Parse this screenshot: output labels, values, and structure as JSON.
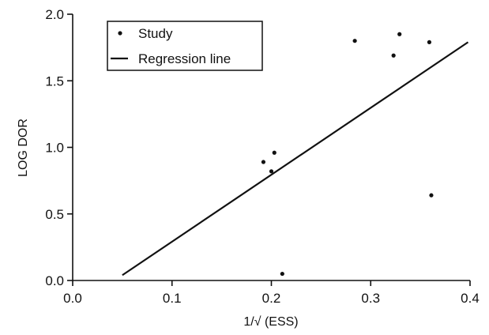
{
  "chart_data": {
    "type": "scatter",
    "title": "",
    "xlabel": "1/√ (ESS)",
    "ylabel": "LOG DOR",
    "xlim": [
      0.0,
      0.4
    ],
    "ylim": [
      0.0,
      2.0
    ],
    "x_ticks": [
      0.0,
      0.1,
      0.2,
      0.3,
      0.4
    ],
    "x_tick_labels": [
      "0.0",
      "0.1",
      "0.2",
      "0.3",
      "0.4"
    ],
    "y_ticks": [
      0.0,
      0.5,
      1.0,
      1.5,
      2.0
    ],
    "y_tick_labels": [
      "0.0",
      "0.5",
      "1.0",
      "1.5",
      "2.0"
    ],
    "grid": false,
    "legend_position": "top-left",
    "series": [
      {
        "name": "Study",
        "marker": "dot",
        "points": [
          {
            "x": 0.192,
            "y": 0.89
          },
          {
            "x": 0.2,
            "y": 0.82
          },
          {
            "x": 0.203,
            "y": 0.96
          },
          {
            "x": 0.211,
            "y": 0.05
          },
          {
            "x": 0.284,
            "y": 1.8
          },
          {
            "x": 0.323,
            "y": 1.69
          },
          {
            "x": 0.329,
            "y": 1.85
          },
          {
            "x": 0.359,
            "y": 1.79
          },
          {
            "x": 0.361,
            "y": 0.64
          }
        ]
      },
      {
        "name": "Regression line",
        "marker": "line",
        "points": [
          {
            "x": 0.05,
            "y": 0.04
          },
          {
            "x": 0.398,
            "y": 1.79
          }
        ]
      }
    ],
    "colors": {
      "axis": "#111111",
      "points": "#111111",
      "line": "#111111",
      "background": "#ffffff"
    }
  }
}
